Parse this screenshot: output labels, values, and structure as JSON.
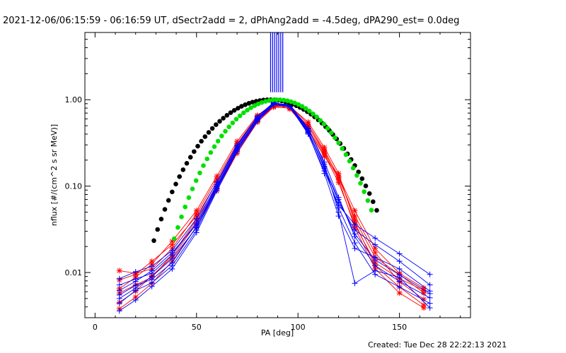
{
  "chart_data": {
    "type": "line",
    "title": "2021-12-06/06:15:59 - 06:16:59 UT, dSectr2add = 2, dPhAng2add = -4.5deg, dPA290_est=  0.0deg",
    "xlabel": "PA [deg]",
    "ylabel": "nflux [#/(cm^2 s sr MeV)]",
    "x_scale": "linear",
    "y_scale": "log",
    "xlim": [
      -5,
      185
    ],
    "ylim": [
      0.003,
      6.0
    ],
    "x_ticks": [
      0,
      50,
      100,
      150
    ],
    "x_tick_labels": [
      "0",
      "50",
      "100",
      "150"
    ],
    "y_ticks": [
      0.01,
      0.1,
      1.0
    ],
    "y_tick_labels": [
      "0.01",
      "0.10",
      "1.00"
    ],
    "grid": false,
    "colors": {
      "red": "#ff0000",
      "blue": "#0000ff",
      "black": "#000000",
      "green": "#00e000"
    },
    "series": [
      {
        "color": "red",
        "marker": "asterisk",
        "x": [
          12,
          20,
          28,
          38,
          50,
          60,
          70,
          80,
          88,
          96,
          105,
          113,
          120,
          128,
          138,
          150,
          162
        ],
        "y": [
          0.0105,
          0.0098,
          0.011,
          0.019,
          0.048,
          0.12,
          0.31,
          0.64,
          0.88,
          0.79,
          0.46,
          0.23,
          0.11,
          0.036,
          0.013,
          0.0085,
          0.0062
        ]
      },
      {
        "color": "red",
        "marker": "asterisk",
        "x": [
          12,
          20,
          28,
          38,
          50,
          60,
          70,
          80,
          88,
          96,
          105,
          113,
          120,
          128,
          138,
          150,
          162
        ],
        "y": [
          0.0082,
          0.0095,
          0.0135,
          0.021,
          0.045,
          0.11,
          0.29,
          0.62,
          0.86,
          0.83,
          0.49,
          0.25,
          0.13,
          0.041,
          0.015,
          0.0095,
          0.0058
        ]
      },
      {
        "color": "red",
        "marker": "asterisk",
        "x": [
          12,
          20,
          28,
          38,
          50,
          60,
          70,
          80,
          88,
          96,
          105,
          113,
          120,
          128,
          138,
          150,
          162
        ],
        "y": [
          0.0058,
          0.0072,
          0.0088,
          0.016,
          0.041,
          0.1,
          0.27,
          0.59,
          0.84,
          0.86,
          0.52,
          0.26,
          0.125,
          0.045,
          0.017,
          0.0078,
          0.0049
        ]
      },
      {
        "color": "red",
        "marker": "asterisk",
        "x": [
          12,
          20,
          28,
          38,
          50,
          60,
          70,
          80,
          88,
          96,
          105,
          113,
          120,
          128,
          138,
          150,
          162
        ],
        "y": [
          0.0045,
          0.0061,
          0.0092,
          0.015,
          0.037,
          0.094,
          0.25,
          0.57,
          0.83,
          0.84,
          0.55,
          0.28,
          0.14,
          0.038,
          0.012,
          0.0068,
          0.0042
        ]
      },
      {
        "color": "red",
        "marker": "asterisk",
        "x": [
          12,
          20,
          28,
          38,
          50,
          60,
          70,
          80,
          88,
          96,
          105,
          113,
          120,
          128,
          138,
          150,
          162
        ],
        "y": [
          0.0038,
          0.0052,
          0.0075,
          0.0135,
          0.034,
          0.088,
          0.24,
          0.55,
          0.82,
          0.8,
          0.5,
          0.24,
          0.12,
          0.033,
          0.011,
          0.0058,
          0.0039
        ]
      },
      {
        "color": "red",
        "marker": "asterisk",
        "x": [
          12,
          20,
          28,
          38,
          50,
          60,
          70,
          80,
          88,
          96,
          105,
          113,
          120,
          128,
          138,
          150,
          162
        ],
        "y": [
          0.0065,
          0.0088,
          0.0125,
          0.023,
          0.052,
          0.13,
          0.33,
          0.66,
          0.9,
          0.78,
          0.44,
          0.22,
          0.13,
          0.052,
          0.019,
          0.0098,
          0.0066
        ]
      },
      {
        "color": "blue",
        "marker": "plus",
        "x": [
          12,
          20,
          28,
          38,
          50,
          60,
          70,
          80,
          88,
          96,
          105,
          113,
          120,
          128,
          138,
          150,
          165
        ],
        "y": [
          0.0072,
          0.0084,
          0.0098,
          0.016,
          0.038,
          0.105,
          0.29,
          0.63,
          0.92,
          0.86,
          0.46,
          0.19,
          0.074,
          0.026,
          0.012,
          0.0079,
          0.0051
        ]
      },
      {
        "color": "blue",
        "marker": "plus",
        "x": [
          12,
          20,
          28,
          38,
          50,
          60,
          70,
          80,
          88,
          96,
          105,
          113,
          120,
          128,
          138,
          150,
          165
        ],
        "y": [
          0.0055,
          0.0071,
          0.0083,
          0.013,
          0.034,
          0.098,
          0.27,
          0.61,
          0.9,
          0.88,
          0.44,
          0.16,
          0.056,
          0.022,
          0.0095,
          0.0068,
          0.0044
        ]
      },
      {
        "color": "blue",
        "marker": "plus",
        "x": [
          12,
          20,
          28,
          38,
          50,
          60,
          70,
          80,
          88,
          96,
          105,
          113,
          120,
          128,
          138,
          150,
          165
        ],
        "y": [
          0.0044,
          0.0062,
          0.0076,
          0.012,
          0.031,
          0.092,
          0.26,
          0.58,
          0.88,
          0.84,
          0.41,
          0.14,
          0.045,
          0.019,
          0.015,
          0.011,
          0.0061
        ]
      },
      {
        "color": "blue",
        "marker": "plus",
        "x": [
          12,
          20,
          28,
          38,
          50,
          60,
          70,
          80,
          88,
          96,
          105,
          113,
          120,
          128,
          138,
          150,
          165
        ],
        "y": [
          0.0085,
          0.0102,
          0.0118,
          0.018,
          0.042,
          0.112,
          0.3,
          0.64,
          0.93,
          0.85,
          0.43,
          0.17,
          0.065,
          0.031,
          0.021,
          0.0135,
          0.0072
        ]
      },
      {
        "color": "blue",
        "marker": "plus",
        "x": [
          12,
          20,
          28,
          38,
          50,
          60,
          70,
          80,
          88,
          96,
          105,
          113,
          120,
          128,
          138,
          150,
          165
        ],
        "y": [
          0.0036,
          0.0048,
          0.0069,
          0.011,
          0.029,
          0.088,
          0.25,
          0.56,
          0.87,
          0.87,
          0.47,
          0.18,
          0.05,
          0.0075,
          0.0105,
          0.0088,
          0.0039
        ]
      },
      {
        "color": "blue",
        "marker": "plus",
        "x": [
          12,
          20,
          28,
          38,
          50,
          60,
          70,
          80,
          88,
          96,
          105,
          113,
          120,
          128,
          138,
          150,
          165
        ],
        "y": [
          0.0062,
          0.0079,
          0.0105,
          0.017,
          0.036,
          0.1,
          0.28,
          0.6,
          0.91,
          0.83,
          0.4,
          0.15,
          0.06,
          0.036,
          0.025,
          0.0165,
          0.0095
        ]
      },
      {
        "color": "blue",
        "marker": "plus",
        "x": [
          12,
          20,
          28,
          38,
          50,
          60,
          70,
          80,
          88,
          96,
          105,
          113,
          120,
          128,
          138,
          150,
          165
        ],
        "y": [
          0.005,
          0.0066,
          0.009,
          0.0145,
          0.033,
          0.095,
          0.26,
          0.59,
          0.89,
          0.82,
          0.42,
          0.165,
          0.07,
          0.028,
          0.014,
          0.0094,
          0.0057
        ]
      }
    ],
    "fits": [
      {
        "color": "black",
        "marker": "filled-circle",
        "x_start": 29,
        "x_end": 139,
        "x_step": 1.8,
        "peak_x": 86,
        "peak_y": 1.0,
        "sin_power_left": 5.5,
        "sin_power_right": 6.5
      },
      {
        "color": "green",
        "marker": "filled-circle",
        "x_start": 39,
        "x_end": 137,
        "x_step": 1.8,
        "peak_x": 90,
        "peak_y": 1.0,
        "sin_power_left": 8.0,
        "sin_power_right": 8.0
      }
    ],
    "vertical_bars": [
      {
        "color": "blue",
        "x_values": [
          86.5,
          87.5,
          88.5,
          89.5,
          90.5,
          91.5,
          92.5
        ],
        "y_from": 1.22,
        "y_to": 6.0
      }
    ],
    "footer": "Created: Tue Dec 28 22:22:13 2021"
  }
}
